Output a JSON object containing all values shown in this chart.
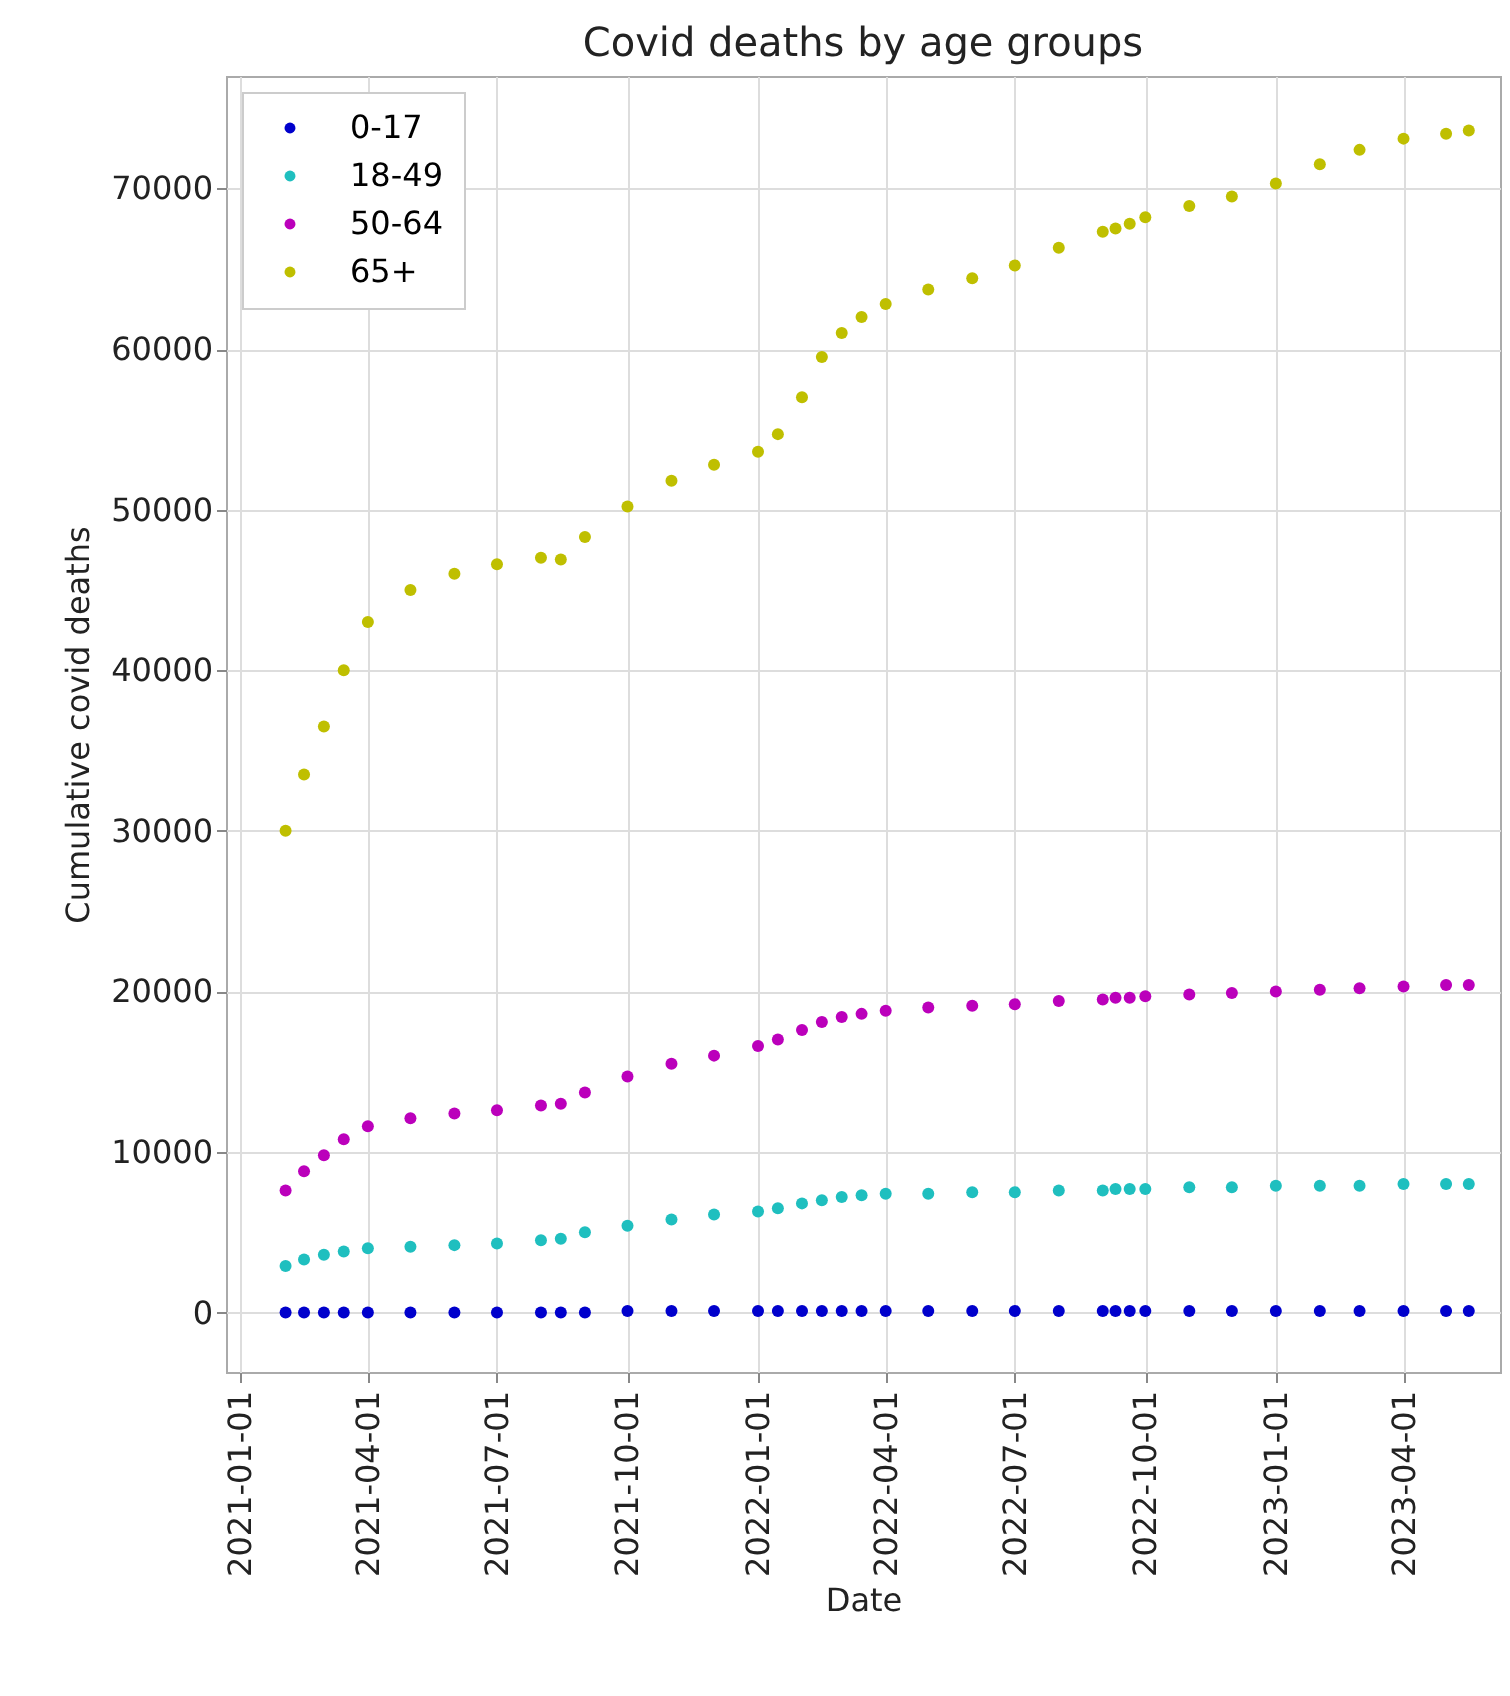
{
  "chart_data": {
    "type": "scatter",
    "title": "Covid deaths by age groups",
    "xlabel": "Date",
    "ylabel": "Cumulative covid deaths",
    "x": [
      "2021-02-02",
      "2021-02-15",
      "2021-03-01",
      "2021-03-15",
      "2021-04-01",
      "2021-05-01",
      "2021-06-01",
      "2021-07-01",
      "2021-08-01",
      "2021-08-15",
      "2021-09-01",
      "2021-10-01",
      "2021-11-01",
      "2021-12-01",
      "2022-01-01",
      "2022-01-15",
      "2022-02-01",
      "2022-02-15",
      "2022-03-01",
      "2022-03-15",
      "2022-04-01",
      "2022-05-01",
      "2022-06-01",
      "2022-07-01",
      "2022-08-01",
      "2022-09-01",
      "2022-09-10",
      "2022-09-20",
      "2022-10-01",
      "2022-11-01",
      "2022-12-01",
      "2023-01-01",
      "2023-02-01",
      "2023-03-01",
      "2023-04-01",
      "2023-05-01",
      "2023-05-17"
    ],
    "series": [
      {
        "name": "0-17",
        "color": "#0000cc",
        "values": [
          0,
          0,
          0,
          0,
          0,
          0,
          0,
          0,
          0,
          0,
          0,
          100,
          100,
          100,
          100,
          100,
          100,
          100,
          100,
          100,
          100,
          100,
          100,
          100,
          100,
          100,
          100,
          100,
          100,
          100,
          100,
          100,
          100,
          100,
          100,
          100,
          100
        ]
      },
      {
        "name": "18-49",
        "color": "#1fbfbf",
        "values": [
          2900,
          3300,
          3600,
          3800,
          4000,
          4100,
          4200,
          4300,
          4500,
          4600,
          5000,
          5400,
          5800,
          6100,
          6300,
          6500,
          6800,
          7000,
          7200,
          7300,
          7400,
          7400,
          7500,
          7500,
          7600,
          7600,
          7700,
          7700,
          7700,
          7800,
          7800,
          7900,
          7900,
          7900,
          8000,
          8000,
          8000
        ]
      },
      {
        "name": "50-64",
        "color": "#bb00bb",
        "values": [
          7600,
          8800,
          9800,
          10800,
          11600,
          12100,
          12400,
          12600,
          12900,
          13000,
          13700,
          14700,
          15500,
          16000,
          16600,
          17000,
          17600,
          18100,
          18400,
          18600,
          18800,
          19000,
          19100,
          19200,
          19400,
          19500,
          19600,
          19600,
          19700,
          19800,
          19900,
          20000,
          20100,
          20200,
          20300,
          20400,
          20400
        ]
      },
      {
        "name": "65+",
        "color": "#bfbf00",
        "values": [
          30000,
          33500,
          36500,
          40000,
          43000,
          45000,
          46000,
          46600,
          47000,
          46900,
          48300,
          50200,
          51800,
          52800,
          53600,
          54700,
          57000,
          59500,
          61000,
          62000,
          62800,
          63700,
          64400,
          65200,
          66300,
          67300,
          67500,
          67800,
          68200,
          68900,
          69500,
          70300,
          71500,
          72400,
          73100,
          73400,
          73600
        ]
      }
    ],
    "xlim": [
      "2020-12-22",
      "2023-06-08"
    ],
    "xticks": [
      "2021-01-01",
      "2021-04-01",
      "2021-07-01",
      "2021-10-01",
      "2022-01-01",
      "2022-04-01",
      "2022-07-01",
      "2022-10-01",
      "2023-01-01",
      "2023-04-01"
    ],
    "ylim": [
      -3700,
      77000
    ],
    "yticks": [
      0,
      10000,
      20000,
      30000,
      40000,
      50000,
      60000,
      70000
    ],
    "grid": true,
    "legend": "top left",
    "marker": "circle"
  }
}
